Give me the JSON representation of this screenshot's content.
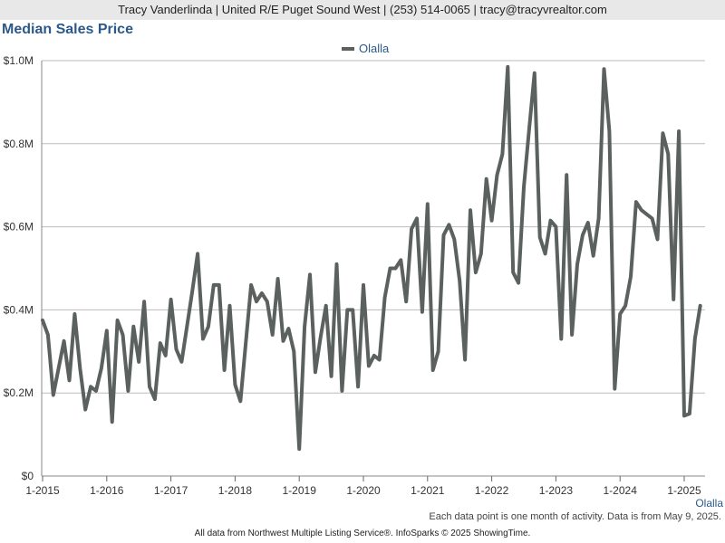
{
  "header": {
    "contact": "Tracy Vanderlinda | United R/E Puget Sound West | (253) 514-0065 | tracy@tracyvrealtor.com"
  },
  "title": "Median Sales Price",
  "colors": {
    "series": "#5a615e",
    "grid": "#bbbbbb",
    "accent": "#2b5a8a"
  },
  "chart_data": {
    "type": "line",
    "title": "Median Sales Price",
    "legend": {
      "position": "top-center",
      "entries": [
        "Olalla"
      ]
    },
    "grid": true,
    "ylim": [
      0,
      1000000
    ],
    "y_ticks": [
      {
        "value": 0,
        "label": "$0"
      },
      {
        "value": 200000,
        "label": "$0.2M"
      },
      {
        "value": 400000,
        "label": "$0.4M"
      },
      {
        "value": 600000,
        "label": "$0.6M"
      },
      {
        "value": 800000,
        "label": "$0.8M"
      },
      {
        "value": 1000000,
        "label": "$1.0M"
      }
    ],
    "x_ticks": [
      "1-2015",
      "1-2016",
      "1-2017",
      "1-2018",
      "1-2019",
      "1-2020",
      "1-2021",
      "1-2022",
      "1-2023",
      "1-2024",
      "1-2025"
    ],
    "corner_label": "Olalla",
    "series": [
      {
        "name": "Olalla",
        "start": "1-2015",
        "values": [
          375000,
          340000,
          195000,
          260000,
          325000,
          230000,
          390000,
          260000,
          160000,
          215000,
          205000,
          260000,
          350000,
          130000,
          375000,
          340000,
          205000,
          360000,
          275000,
          420000,
          215000,
          185000,
          320000,
          290000,
          425000,
          305000,
          275000,
          360000,
          445000,
          535000,
          330000,
          360000,
          460000,
          460000,
          255000,
          410000,
          220000,
          180000,
          320000,
          460000,
          420000,
          440000,
          420000,
          340000,
          475000,
          325000,
          355000,
          300000,
          65000,
          360000,
          485000,
          250000,
          335000,
          410000,
          240000,
          510000,
          205000,
          400000,
          400000,
          215000,
          460000,
          265000,
          290000,
          280000,
          430000,
          500000,
          500000,
          520000,
          420000,
          595000,
          620000,
          395000,
          655000,
          255000,
          300000,
          580000,
          605000,
          570000,
          470000,
          280000,
          640000,
          490000,
          535000,
          715000,
          615000,
          725000,
          775000,
          985000,
          490000,
          465000,
          695000,
          835000,
          970000,
          575000,
          535000,
          615000,
          600000,
          330000,
          725000,
          340000,
          510000,
          580000,
          610000,
          530000,
          620000,
          980000,
          830000,
          210000,
          390000,
          410000,
          480000,
          660000,
          640000,
          630000,
          620000,
          570000,
          825000,
          775000,
          425000,
          830000,
          145000,
          150000,
          330000,
          410000
        ]
      }
    ]
  },
  "footnote": "Each data point is one month of activity. Data is from May 9, 2025.",
  "credit": "All data from Northwest Multiple Listing Service®. InfoSparks © 2025 ShowingTime."
}
